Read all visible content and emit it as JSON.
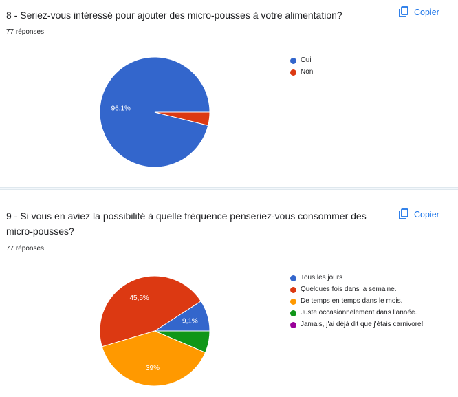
{
  "questions": [
    {
      "title": "8 - Seriez-vous intéressé pour ajouter des micro-pousses à votre alimentation?",
      "responses": "77 réponses",
      "copy_label": "Copier"
    },
    {
      "title": "9 - Si vous en aviez la possibilité à quelle fréquence penseriez-vous consommer des micro-pousses?",
      "responses": "77 réponses",
      "copy_label": "Copier"
    }
  ],
  "colors": {
    "accent": "#1a73e8",
    "text": "#202124"
  },
  "chart_data": [
    {
      "type": "pie",
      "labels": [
        "Oui",
        "Non"
      ],
      "values": [
        96.1,
        3.9
      ],
      "slice_labels": [
        "96,1%",
        ""
      ],
      "colors": [
        "#3366cc",
        "#dc3912"
      ],
      "legend": "right"
    },
    {
      "type": "pie",
      "labels": [
        "Tous les jours",
        "Quelques fois dans la semaine.",
        "De temps en temps dans le mois.",
        "Juste occasionnelement dans l'année.",
        "Jamais, j'ai déjà dit que j'étais carnivore!"
      ],
      "values": [
        9.1,
        45.5,
        39,
        6.4,
        0
      ],
      "slice_labels": [
        "9,1%",
        "45,5%",
        "39%",
        "",
        ""
      ],
      "colors": [
        "#3366cc",
        "#dc3912",
        "#ff9900",
        "#109618",
        "#990099"
      ],
      "legend": "right"
    }
  ]
}
